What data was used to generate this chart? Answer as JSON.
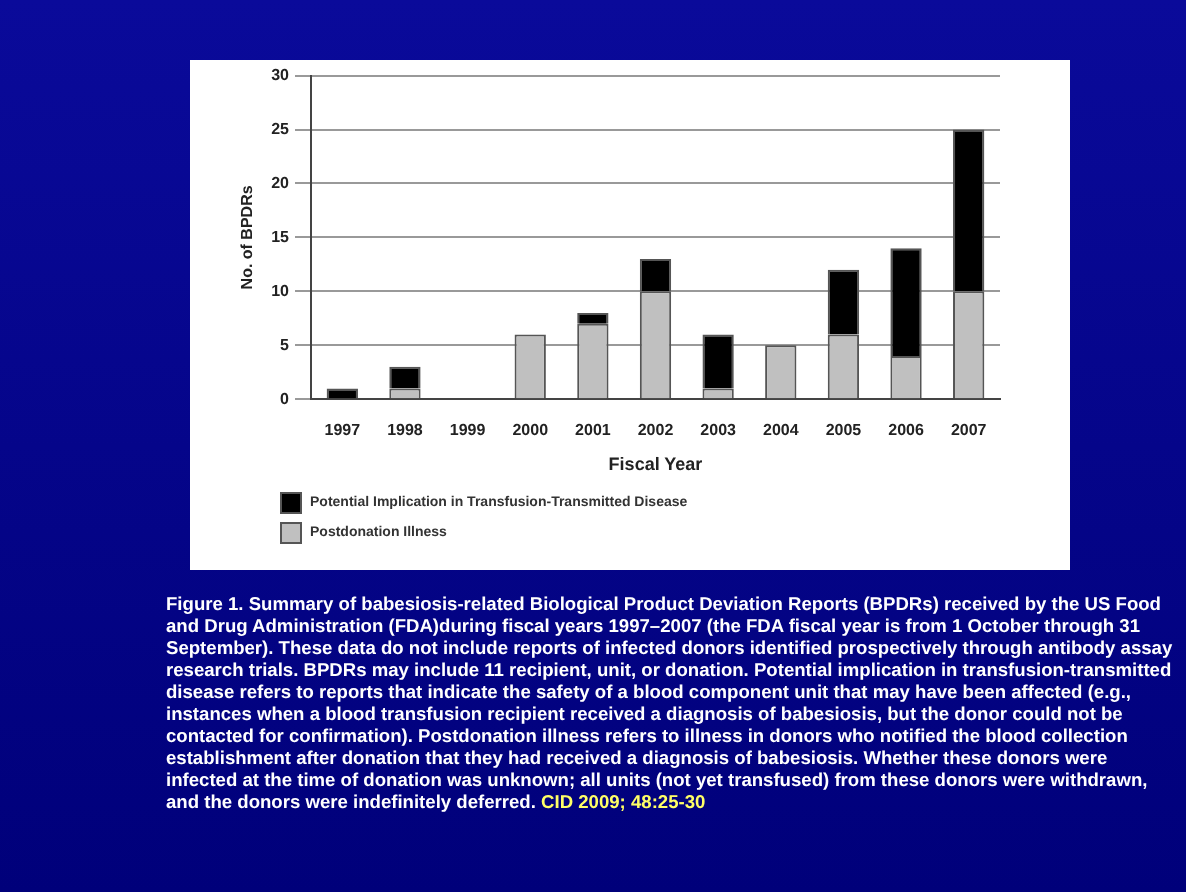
{
  "chart_data": {
    "type": "bar",
    "stacked": true,
    "categories": [
      "1997",
      "1998",
      "1999",
      "2000",
      "2001",
      "2002",
      "2003",
      "2004",
      "2005",
      "2006",
      "2007"
    ],
    "series": [
      {
        "name": "Postdonation Illness",
        "color": "#c0c0c0",
        "values": [
          0,
          1,
          0,
          6,
          7,
          10,
          1,
          5,
          6,
          4,
          10
        ]
      },
      {
        "name": "Potential Implication in Transfusion-Transmitted Disease",
        "color": "#000000",
        "values": [
          1,
          2,
          0,
          0,
          1,
          3,
          5,
          0,
          6,
          10,
          15
        ]
      }
    ],
    "xlabel": "Fiscal Year",
    "ylabel": "No. of BPDRs",
    "ylim": [
      0,
      30
    ],
    "yticks": [
      0,
      5,
      10,
      15,
      20,
      25,
      30
    ],
    "grid": "y",
    "legend": "bottom left",
    "annotations": [
      "Figure 1. Summary of babesiosis-related Biological Product Deviation Reports (BPDRs) received by the US Food and Drug Administration (FDA)during fiscal years 1997–2007 (the FDA fiscal year is from 1 October through 31 September). These data do not include reports of infected donors identified prospectively through antibody assay research trials. BPDRs may include 11 recipient, unit, or donation. Potential implication in transfusion-transmitted disease refers to reports that indicate the safety of a blood component unit that may have been affected (e.g., instances when a blood transfusion recipient received a diagnosis of babesiosis, but the donor could not be contacted for confirmation). Postdonation illness refers to illness in donors who notified the blood collection establishment after donation that they had received a diagnosis of babesiosis. Whether these donors were infected at the time of donation was unknown; all units (not yet transfused) from these donors were withdrawn, and the donors were indefinitely deferred.",
      "CID 2009; 48:25-30"
    ]
  }
}
